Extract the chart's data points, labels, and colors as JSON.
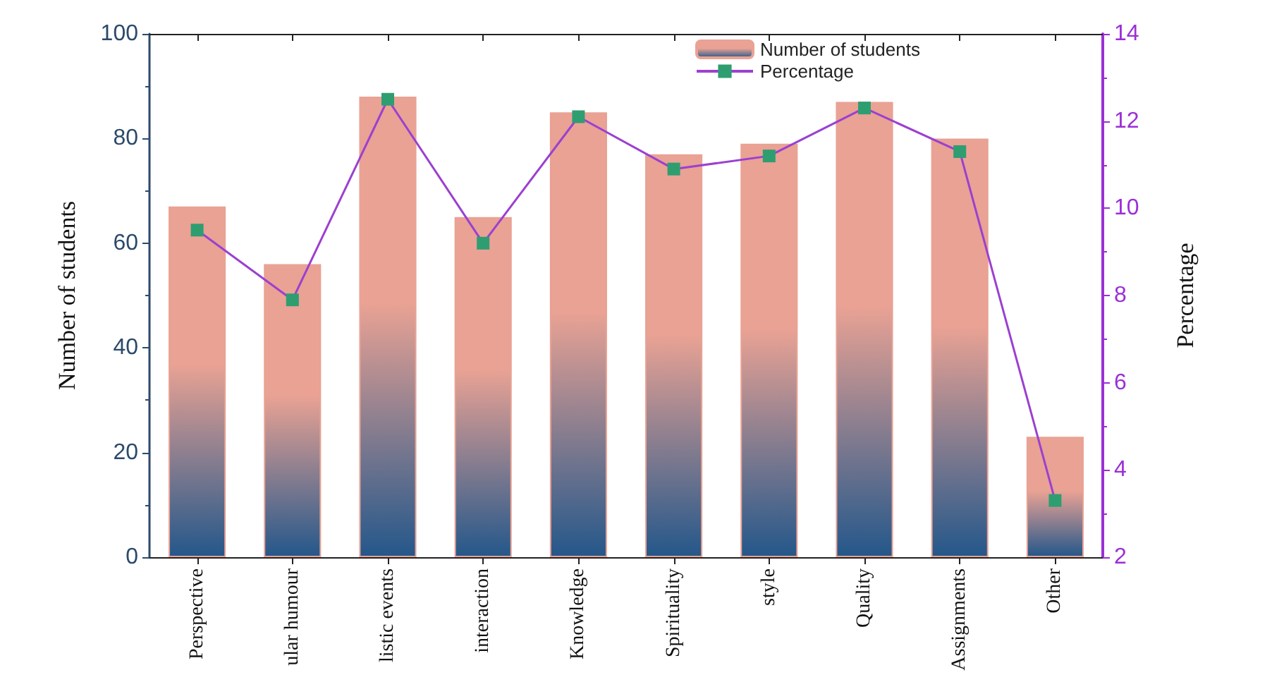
{
  "chart_data": {
    "type": "bar",
    "ylabel": "Number of students",
    "y2label": "Percentage",
    "categories": [
      "Perspective",
      "ular humour",
      "listic events",
      "interaction",
      "Knowledge",
      "Spirituality",
      "style",
      "Quality",
      "Assignments",
      "Other"
    ],
    "series": [
      {
        "name": "Number of students",
        "color": "#e9a294",
        "values": [
          67,
          56,
          88,
          65,
          85,
          77,
          79,
          87,
          80,
          23
        ]
      },
      {
        "name": "Percentage",
        "type": "line",
        "axis": "y2",
        "color": "#9b40d0",
        "marker": "square",
        "values": [
          9.5,
          7.9,
          12.5,
          9.2,
          12.1,
          10.9,
          11.2,
          12.3,
          11.3,
          3.3
        ]
      }
    ],
    "ylim": [
      0,
      100
    ],
    "yticks": [
      0,
      20,
      40,
      60,
      80,
      100
    ],
    "y2lim": [
      2,
      14
    ],
    "y2ticks": [
      2,
      4,
      6,
      8,
      10,
      12,
      14
    ],
    "legend": "top right",
    "grid": false
  }
}
